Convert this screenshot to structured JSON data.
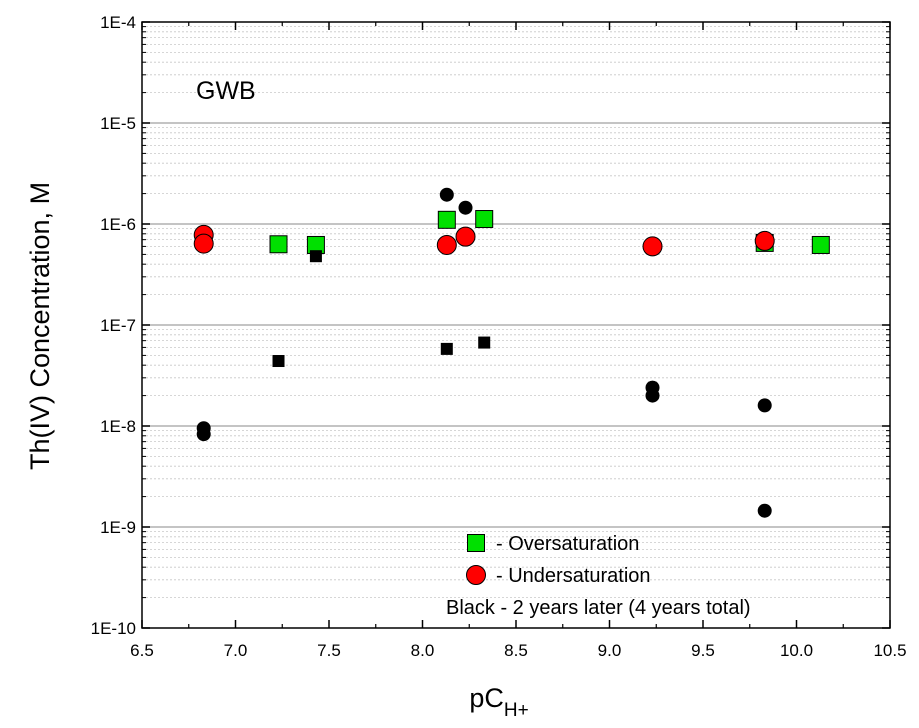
{
  "chart_data": {
    "type": "scatter",
    "xlabel": "pC",
    "xlabel_sub": "H+",
    "ylabel": "Th(IV) Concentration, M",
    "annotation": "GWB",
    "xlim": [
      6.5,
      10.5
    ],
    "ylim": [
      1e-10,
      0.0001
    ],
    "yscale": "log",
    "x_ticks": [
      6.5,
      7.0,
      7.5,
      8.0,
      8.5,
      9.0,
      9.5,
      10.0,
      10.5
    ],
    "x_tick_labels": [
      "6.5",
      "7.0",
      "7.5",
      "8.0",
      "8.5",
      "9.0",
      "9.5",
      "10.0",
      "10.5"
    ],
    "y_ticks": [
      1e-10,
      1e-09,
      1e-08,
      1e-07,
      1e-06,
      1e-05,
      0.0001
    ],
    "y_tick_labels": [
      "1E-10",
      "1E-9",
      "1E-8",
      "1E-7",
      "1E-6",
      "1E-5",
      "1E-4"
    ],
    "grid": "major and minor horizontal lines",
    "legend_position": "bottom-center",
    "legend": [
      {
        "label": "- Oversaturation",
        "marker": "square",
        "color": "#00e000"
      },
      {
        "label": "- Undersaturation",
        "marker": "circle",
        "color": "#ff0000"
      }
    ],
    "legend_note": "Black - 2 years later (4 years total)",
    "series": [
      {
        "name": "- Oversaturation",
        "marker": "square",
        "color": "#00e000",
        "x": [
          7.23,
          7.43,
          8.13,
          8.33,
          9.83,
          10.13
        ],
        "y": [
          6.3e-07,
          6.2e-07,
          1.1e-06,
          1.12e-06,
          6.5e-07,
          6.2e-07
        ]
      },
      {
        "name": "- Undersaturation",
        "marker": "circle",
        "color": "#ff0000",
        "x": [
          6.83,
          6.83,
          8.13,
          8.23,
          9.23,
          9.83
        ],
        "y": [
          7.8e-07,
          6.4e-07,
          6.2e-07,
          7.5e-07,
          6e-07,
          6.8e-07
        ]
      },
      {
        "marker": "square-small",
        "color": "#000000",
        "x": [
          7.23,
          7.43,
          8.13,
          8.33
        ],
        "y": [
          4.4e-08,
          4.8e-07,
          5.8e-08,
          6.7e-08
        ]
      },
      {
        "marker": "circle-small",
        "color": "#000000",
        "x": [
          6.83,
          6.83,
          8.13,
          8.23,
          9.23,
          9.23,
          9.83,
          9.83
        ],
        "y": [
          9.5e-09,
          8.3e-09,
          1.95e-06,
          1.45e-06,
          2.4e-08,
          2e-08,
          1.6e-08,
          1.45e-09
        ]
      }
    ]
  }
}
